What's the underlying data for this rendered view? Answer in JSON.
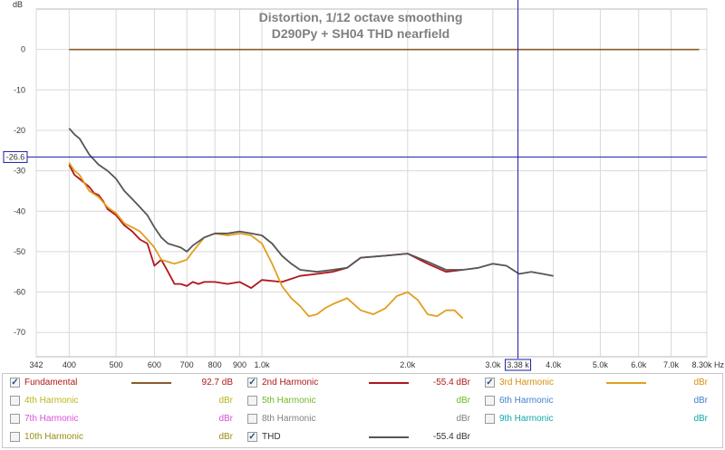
{
  "chart_data": {
    "type": "line",
    "title": "Distortion, 1/12 octave smoothing",
    "subtitle": "D290Py + SH04  THD nearfield",
    "ylabel": "dB",
    "xunit": "Hz",
    "xscale": "log",
    "xlim": [
      342,
      8300
    ],
    "ylim": [
      -76,
      10
    ],
    "grid": true,
    "x_ticks": [
      "342",
      "400",
      "500",
      "600",
      "700",
      "800",
      "900",
      "1.0k",
      "2.0k",
      "3.0k",
      "4.0k",
      "5.0k",
      "6.0k",
      "7.0k",
      "8.30k Hz"
    ],
    "x_tick_values": [
      342,
      400,
      500,
      600,
      700,
      800,
      900,
      1000,
      2000,
      3000,
      4000,
      5000,
      6000,
      7000,
      8300
    ],
    "y_ticks": [
      "0",
      "-10",
      "-20",
      "-30",
      "-40",
      "-50",
      "-60",
      "-70"
    ],
    "y_tick_values": [
      0,
      -10,
      -20,
      -30,
      -40,
      -50,
      -60,
      -70
    ],
    "cursor": {
      "x": 3380,
      "y": -26.6,
      "x_label": "3.38 k",
      "y_label": "-26.6"
    },
    "series": [
      {
        "name": "Fundamental",
        "color": "#8b5a2b",
        "x": [
          400,
          4000,
          8000
        ],
        "y": [
          0,
          0,
          0
        ]
      },
      {
        "name": "2nd Harmonic",
        "color": "#b0161c",
        "x": [
          400,
          410,
          420,
          440,
          450,
          460,
          470,
          480,
          500,
          520,
          540,
          560,
          580,
          600,
          620,
          640,
          660,
          680,
          700,
          720,
          740,
          760,
          800,
          850,
          900,
          950,
          1000,
          1100,
          1200,
          1300,
          1400,
          1500,
          1600,
          1800,
          2000,
          2200,
          2400,
          2600
        ],
        "y": [
          -28.5,
          -31,
          -32,
          -34,
          -35.5,
          -36,
          -37.5,
          -39.5,
          -41,
          -43.5,
          -45,
          -47,
          -48,
          -53.5,
          -52,
          -55,
          -58,
          -58,
          -58.5,
          -57.5,
          -58,
          -57.5,
          -57.5,
          -58,
          -57.5,
          -59,
          -57,
          -57.5,
          -56,
          -55.5,
          -55,
          -54,
          -51.5,
          -51,
          -50.5,
          -53,
          -55,
          -54.5
        ]
      },
      {
        "name": "3rd Harmonic",
        "color": "#e0a020",
        "x": [
          400,
          410,
          420,
          440,
          460,
          480,
          500,
          520,
          540,
          560,
          580,
          600,
          620,
          640,
          660,
          680,
          700,
          720,
          760,
          800,
          850,
          900,
          950,
          1000,
          1050,
          1100,
          1150,
          1200,
          1250,
          1300,
          1350,
          1400,
          1500,
          1600,
          1700,
          1800,
          1900,
          2000,
          2100,
          2200,
          2300,
          2400,
          2500,
          2600
        ],
        "y": [
          -28,
          -30,
          -31,
          -35,
          -36.5,
          -39,
          -40.5,
          -43,
          -44,
          -45,
          -47,
          -49,
          -52,
          -52.5,
          -53,
          -52.5,
          -52,
          -50,
          -46.5,
          -45.5,
          -46,
          -45.5,
          -46,
          -48,
          -53,
          -58.5,
          -61.5,
          -63.5,
          -66,
          -65.5,
          -64,
          -63,
          -61.5,
          -64.5,
          -65.5,
          -64,
          -61,
          -60,
          -62,
          -65.5,
          -66,
          -64.5,
          -64.5,
          -66.5
        ]
      },
      {
        "name": "THD",
        "color": "#555555",
        "x": [
          400,
          410,
          420,
          440,
          460,
          480,
          500,
          520,
          540,
          560,
          580,
          600,
          620,
          640,
          660,
          680,
          700,
          720,
          760,
          800,
          850,
          900,
          950,
          1000,
          1050,
          1100,
          1150,
          1200,
          1300,
          1400,
          1500,
          1600,
          1800,
          2000,
          2200,
          2400,
          2600,
          2800,
          3000,
          3200,
          3400,
          3600,
          3800,
          4000
        ],
        "y": [
          -19.5,
          -21,
          -22,
          -26,
          -28.5,
          -30,
          -32,
          -35,
          -37,
          -39,
          -41,
          -44,
          -46.5,
          -48,
          -48.5,
          -49,
          -50,
          -48.5,
          -46.5,
          -45.5,
          -45.5,
          -45,
          -45.5,
          -46,
          -48,
          -51,
          -53,
          -54.5,
          -55,
          -54.5,
          -54,
          -51.5,
          -51,
          -50.5,
          -52.5,
          -54.5,
          -54.5,
          -54,
          -53,
          -53.5,
          -55.5,
          -55,
          -55.5,
          -56
        ]
      }
    ]
  },
  "legend": [
    {
      "name": "Fundamental",
      "value": "92.7 dB",
      "color": "#8b5a2b",
      "text_color": "#b01818",
      "value_color": "#b01818",
      "checked": true,
      "show_line": true
    },
    {
      "name": "2nd Harmonic",
      "value": "-55.4 dBr",
      "color": "#b0161c",
      "text_color": "#b01818",
      "value_color": "#b01818",
      "checked": true,
      "show_line": true
    },
    {
      "name": "3rd Harmonic",
      "value": "dBr",
      "color": "#e0a020",
      "text_color": "#d89010",
      "value_color": "#d89010",
      "checked": true,
      "show_line": true
    },
    {
      "name": "4th Harmonic",
      "value": "dBr",
      "color": "#c8c828",
      "text_color": "#b8b818",
      "value_color": "#b8b818",
      "checked": false,
      "show_line": false
    },
    {
      "name": "5th Harmonic",
      "value": "dBr",
      "color": "#88c830",
      "text_color": "#70b820",
      "value_color": "#70b820",
      "checked": false,
      "show_line": false
    },
    {
      "name": "6th Harmonic",
      "value": "dBr",
      "color": "#4888d8",
      "text_color": "#4080d0",
      "value_color": "#4080d0",
      "checked": false,
      "show_line": false
    },
    {
      "name": "7th Harmonic",
      "value": "dBr",
      "color": "#e060e0",
      "text_color": "#d850d8",
      "value_color": "#d850d8",
      "checked": false,
      "show_line": false
    },
    {
      "name": "8th Harmonic",
      "value": "dBr",
      "color": "#909090",
      "text_color": "#808080",
      "value_color": "#808080",
      "checked": false,
      "show_line": false
    },
    {
      "name": "9th Harmonic",
      "value": "dBr",
      "color": "#20b8b8",
      "text_color": "#10a8a8",
      "value_color": "#10a8a8",
      "checked": false,
      "show_line": false
    },
    {
      "name": "10th Harmonic",
      "value": "dBr",
      "color": "#a8a020",
      "text_color": "#989010",
      "value_color": "#989010",
      "checked": false,
      "show_line": false
    },
    {
      "name": "THD",
      "value": "-55.4 dBr",
      "color": "#555555",
      "text_color": "#333333",
      "value_color": "#333333",
      "checked": true,
      "show_line": true
    }
  ]
}
